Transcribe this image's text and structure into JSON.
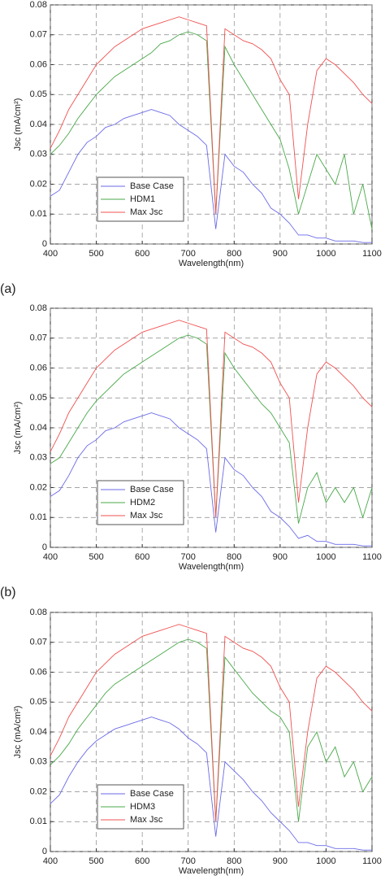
{
  "chart_data": [
    {
      "type": "line",
      "ylabel": "Jsc (mA/cm²)",
      "xlabel": "Wavelength(nm)",
      "panel_label": "(a)",
      "x": [
        400,
        420,
        440,
        460,
        480,
        500,
        520,
        540,
        560,
        580,
        600,
        620,
        640,
        660,
        680,
        700,
        720,
        740,
        760,
        780,
        800,
        820,
        840,
        860,
        880,
        900,
        920,
        940,
        960,
        980,
        1000,
        1020,
        1040,
        1060,
        1080,
        1100
      ],
      "xlim": [
        400,
        1100
      ],
      "xticks": [
        400,
        500,
        600,
        700,
        800,
        900,
        1000,
        1100
      ],
      "ylim": [
        0,
        0.08
      ],
      "yticks": [
        0,
        0.01,
        0.02,
        0.03,
        0.04,
        0.05,
        0.06,
        0.07,
        0.08
      ],
      "grid": true,
      "legend": "lower left",
      "series": [
        {
          "name": "Base Case",
          "color": "#6a6ae8",
          "values": [
            0.016,
            0.018,
            0.024,
            0.03,
            0.034,
            0.036,
            0.039,
            0.04,
            0.042,
            0.043,
            0.044,
            0.045,
            0.044,
            0.043,
            0.04,
            0.038,
            0.036,
            0.033,
            0.005,
            0.03,
            0.026,
            0.024,
            0.02,
            0.017,
            0.012,
            0.01,
            0.007,
            0.003,
            0.003,
            0.002,
            0.002,
            0.001,
            0.001,
            0.001,
            0.0005,
            0.0005
          ]
        },
        {
          "name": "HDM1",
          "color": "#4aa84a",
          "values": [
            0.03,
            0.033,
            0.037,
            0.042,
            0.046,
            0.05,
            0.053,
            0.056,
            0.058,
            0.06,
            0.062,
            0.064,
            0.067,
            0.068,
            0.07,
            0.071,
            0.07,
            0.068,
            0.01,
            0.066,
            0.06,
            0.055,
            0.05,
            0.045,
            0.04,
            0.035,
            0.025,
            0.01,
            0.02,
            0.03,
            0.025,
            0.02,
            0.03,
            0.01,
            0.02,
            0.005
          ]
        },
        {
          "name": "Max Jsc",
          "color": "#f05050",
          "values": [
            0.032,
            0.038,
            0.045,
            0.05,
            0.055,
            0.06,
            0.063,
            0.066,
            0.068,
            0.07,
            0.072,
            0.073,
            0.074,
            0.075,
            0.076,
            0.075,
            0.074,
            0.073,
            0.01,
            0.072,
            0.07,
            0.068,
            0.067,
            0.065,
            0.062,
            0.055,
            0.05,
            0.015,
            0.04,
            0.058,
            0.062,
            0.06,
            0.057,
            0.054,
            0.05,
            0.047
          ]
        }
      ]
    },
    {
      "type": "line",
      "ylabel": "Jsc (mA/cm²)",
      "xlabel": "Wavelength(nm)",
      "panel_label": "(b)",
      "x": [
        400,
        420,
        440,
        460,
        480,
        500,
        520,
        540,
        560,
        580,
        600,
        620,
        640,
        660,
        680,
        700,
        720,
        740,
        760,
        780,
        800,
        820,
        840,
        860,
        880,
        900,
        920,
        940,
        960,
        980,
        1000,
        1020,
        1040,
        1060,
        1080,
        1100
      ],
      "xlim": [
        400,
        1100
      ],
      "xticks": [
        400,
        500,
        600,
        700,
        800,
        900,
        1000,
        1100
      ],
      "ylim": [
        0,
        0.08
      ],
      "yticks": [
        0,
        0.01,
        0.02,
        0.03,
        0.04,
        0.05,
        0.06,
        0.07,
        0.08
      ],
      "grid": true,
      "legend": "lower left",
      "series": [
        {
          "name": "Base Case",
          "color": "#6a6ae8",
          "values": [
            0.017,
            0.019,
            0.024,
            0.03,
            0.034,
            0.036,
            0.039,
            0.04,
            0.042,
            0.043,
            0.044,
            0.045,
            0.044,
            0.043,
            0.04,
            0.038,
            0.036,
            0.033,
            0.005,
            0.03,
            0.026,
            0.024,
            0.02,
            0.017,
            0.012,
            0.01,
            0.007,
            0.003,
            0.004,
            0.002,
            0.002,
            0.001,
            0.001,
            0.001,
            0.0005,
            0.0005
          ]
        },
        {
          "name": "HDM2",
          "color": "#4aa84a",
          "values": [
            0.028,
            0.03,
            0.035,
            0.04,
            0.045,
            0.049,
            0.052,
            0.055,
            0.058,
            0.06,
            0.062,
            0.064,
            0.066,
            0.068,
            0.07,
            0.071,
            0.07,
            0.068,
            0.01,
            0.065,
            0.06,
            0.056,
            0.052,
            0.048,
            0.045,
            0.04,
            0.035,
            0.008,
            0.02,
            0.025,
            0.015,
            0.02,
            0.015,
            0.02,
            0.01,
            0.02
          ]
        },
        {
          "name": "Max Jsc",
          "color": "#f05050",
          "values": [
            0.032,
            0.038,
            0.045,
            0.05,
            0.055,
            0.06,
            0.063,
            0.066,
            0.068,
            0.07,
            0.072,
            0.073,
            0.074,
            0.075,
            0.076,
            0.075,
            0.074,
            0.073,
            0.01,
            0.072,
            0.07,
            0.068,
            0.067,
            0.065,
            0.062,
            0.055,
            0.05,
            0.015,
            0.04,
            0.058,
            0.062,
            0.06,
            0.057,
            0.054,
            0.05,
            0.047
          ]
        }
      ]
    },
    {
      "type": "line",
      "ylabel": "Jsc (mA/cm²)",
      "xlabel": "Wavelength(nm)",
      "x": [
        400,
        420,
        440,
        460,
        480,
        500,
        520,
        540,
        560,
        580,
        600,
        620,
        640,
        660,
        680,
        700,
        720,
        740,
        760,
        780,
        800,
        820,
        840,
        860,
        880,
        900,
        920,
        940,
        960,
        980,
        1000,
        1020,
        1040,
        1060,
        1080,
        1100
      ],
      "xlim": [
        400,
        1100
      ],
      "xticks": [
        400,
        500,
        600,
        700,
        800,
        900,
        1000,
        1100
      ],
      "ylim": [
        0,
        0.08
      ],
      "yticks": [
        0,
        0.01,
        0.02,
        0.03,
        0.04,
        0.05,
        0.06,
        0.07,
        0.08
      ],
      "grid": true,
      "legend": "lower left",
      "series": [
        {
          "name": "Base Case",
          "color": "#6a6ae8",
          "values": [
            0.016,
            0.019,
            0.025,
            0.03,
            0.034,
            0.037,
            0.039,
            0.041,
            0.042,
            0.043,
            0.044,
            0.045,
            0.044,
            0.043,
            0.041,
            0.038,
            0.036,
            0.033,
            0.005,
            0.03,
            0.027,
            0.024,
            0.02,
            0.017,
            0.013,
            0.01,
            0.007,
            0.003,
            0.003,
            0.002,
            0.002,
            0.001,
            0.001,
            0.001,
            0.0005,
            0.0005
          ]
        },
        {
          "name": "HDM3",
          "color": "#4aa84a",
          "values": [
            0.029,
            0.032,
            0.036,
            0.041,
            0.045,
            0.049,
            0.053,
            0.056,
            0.058,
            0.06,
            0.062,
            0.064,
            0.066,
            0.068,
            0.07,
            0.071,
            0.07,
            0.068,
            0.01,
            0.065,
            0.061,
            0.057,
            0.053,
            0.05,
            0.047,
            0.045,
            0.04,
            0.01,
            0.035,
            0.04,
            0.03,
            0.035,
            0.025,
            0.03,
            0.02,
            0.025
          ]
        },
        {
          "name": "Max Jsc",
          "color": "#f05050",
          "values": [
            0.032,
            0.038,
            0.045,
            0.05,
            0.055,
            0.06,
            0.063,
            0.066,
            0.068,
            0.07,
            0.072,
            0.073,
            0.074,
            0.075,
            0.076,
            0.075,
            0.074,
            0.073,
            0.01,
            0.072,
            0.07,
            0.068,
            0.067,
            0.065,
            0.062,
            0.055,
            0.05,
            0.015,
            0.04,
            0.058,
            0.062,
            0.06,
            0.057,
            0.054,
            0.05,
            0.047
          ]
        }
      ]
    }
  ]
}
